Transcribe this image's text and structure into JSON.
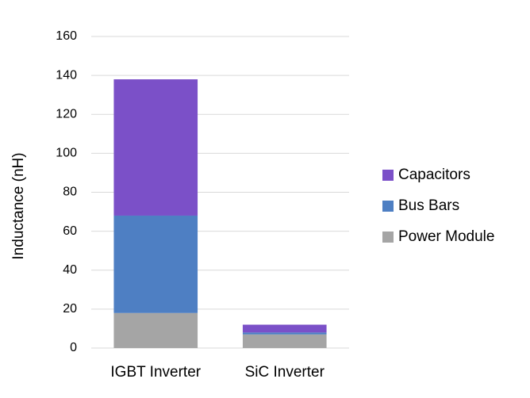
{
  "chart_data": {
    "type": "stacked-bar",
    "y_label": "Inductance (nH)",
    "categories": [
      "IGBT Inverter",
      "SiC Inverter"
    ],
    "series": [
      {
        "name": "Power Module",
        "color": "#a5a5a5",
        "values": [
          18,
          7
        ]
      },
      {
        "name": "Bus Bars",
        "color": "#4e7fc3",
        "values": [
          50,
          1
        ]
      },
      {
        "name": "Capacitors",
        "color": "#7b50c8",
        "values": [
          70,
          4
        ]
      }
    ],
    "ylim": [
      0,
      160
    ],
    "yticks": [
      0,
      20,
      40,
      60,
      80,
      100,
      120,
      140,
      160
    ],
    "grid": true,
    "legend": "right"
  }
}
